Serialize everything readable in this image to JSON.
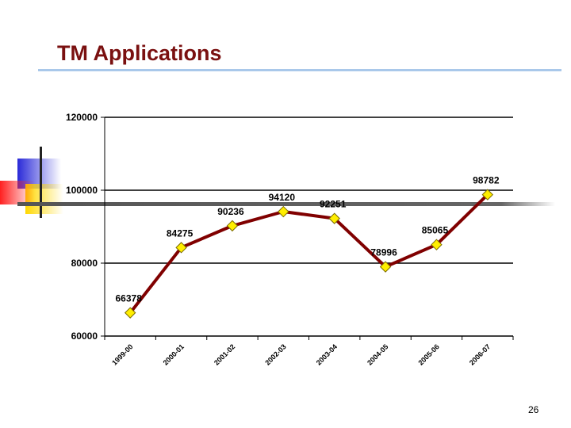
{
  "slide": {
    "title": "TM Applications",
    "page_number": "26"
  },
  "chart_data": {
    "type": "line",
    "title": "",
    "xlabel": "",
    "ylabel": "",
    "categories": [
      "1999-00",
      "2000-01",
      "2001-02",
      "2002-03",
      "2003-04",
      "2004-05",
      "2005-06",
      "2006-07"
    ],
    "series": [
      {
        "values": [
          66378,
          84275,
          90236,
          94120,
          92251,
          78996,
          85065,
          98782
        ]
      }
    ],
    "y_ticks": [
      60000,
      80000,
      100000,
      120000
    ],
    "ylim": [
      60000,
      120000
    ],
    "grid": "horizontal",
    "legend": "none",
    "colors": {
      "line": "#800000",
      "marker_fill": "#ffee00",
      "marker_stroke": "#7a6a00"
    }
  }
}
